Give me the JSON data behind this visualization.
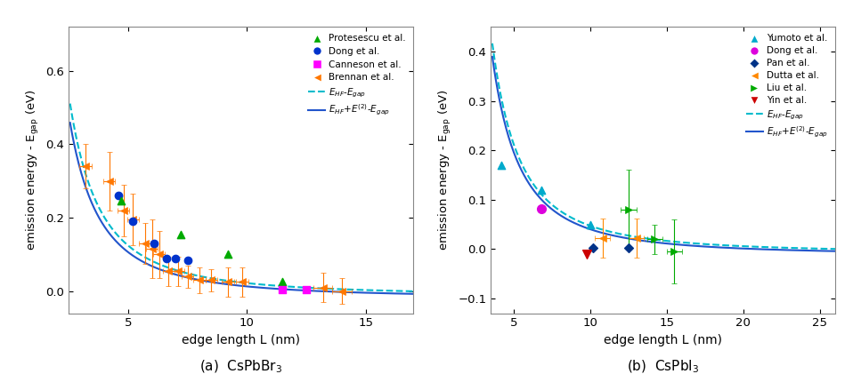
{
  "panel_a": {
    "xlim": [
      2.5,
      17
    ],
    "ylim": [
      -0.06,
      0.72
    ],
    "xticks": [
      5,
      10,
      15
    ],
    "yticks": [
      0.0,
      0.2,
      0.4,
      0.6
    ],
    "xlabel": "edge length L (nm)",
    "ylabel": "emission energy - E$_\\mathrm{gap}$ (eV)",
    "caption": "(a)  CsPbBr$_3$",
    "datasets": {
      "Protesescu": {
        "x": [
          4.7,
          7.2,
          9.2,
          11.5
        ],
        "y": [
          0.245,
          0.155,
          0.1,
          0.025
        ],
        "color": "#00aa00",
        "marker": "^",
        "ms": 6,
        "label": "Protesescu et al."
      },
      "Dong": {
        "x": [
          4.6,
          5.2,
          6.1,
          6.6,
          7.0,
          7.5
        ],
        "y": [
          0.26,
          0.19,
          0.13,
          0.09,
          0.09,
          0.085
        ],
        "color": "#0033cc",
        "marker": "o",
        "ms": 6,
        "label": "Dong et al."
      },
      "Canneson": {
        "x": [
          11.5,
          12.5
        ],
        "y": [
          0.005,
          0.005
        ],
        "color": "#ff00ff",
        "marker": "s",
        "ms": 6,
        "label": "Canneson et al."
      },
      "Brennan": {
        "x": [
          3.2,
          4.2,
          4.8,
          5.2,
          5.7,
          6.0,
          6.3,
          6.7,
          7.1,
          7.5,
          8.0,
          8.5,
          9.2,
          9.8,
          13.2,
          14.0
        ],
        "y": [
          0.34,
          0.3,
          0.22,
          0.195,
          0.13,
          0.115,
          0.1,
          0.055,
          0.055,
          0.04,
          0.03,
          0.03,
          0.025,
          0.025,
          0.01,
          0.0
        ],
        "xerr": [
          0.25,
          0.25,
          0.25,
          0.25,
          0.25,
          0.25,
          0.25,
          0.25,
          0.25,
          0.25,
          0.25,
          0.25,
          0.25,
          0.25,
          0.4,
          0.4
        ],
        "yerr": [
          0.06,
          0.08,
          0.07,
          0.07,
          0.055,
          0.08,
          0.065,
          0.04,
          0.04,
          0.03,
          0.035,
          0.03,
          0.04,
          0.04,
          0.04,
          0.035
        ],
        "color": "#ff7700",
        "marker": "<",
        "ms": 6,
        "label": "Brennan et al."
      }
    },
    "curve_HF": {
      "color": "#00bbcc",
      "linestyle": "--",
      "lw": 1.5
    },
    "curve_HF2": {
      "color": "#2255cc",
      "linestyle": "-",
      "lw": 1.5
    },
    "curve_HF_A": 3.4,
    "curve_HF_c": -0.012,
    "curve_HF2_A": 3.1,
    "curve_HF2_c": -0.018,
    "curve_xstart": 2.55,
    "curve_xend": 17.0
  },
  "panel_b": {
    "xlim": [
      3.5,
      26
    ],
    "ylim": [
      -0.13,
      0.45
    ],
    "xticks": [
      5,
      10,
      15,
      20,
      25
    ],
    "yticks": [
      -0.1,
      0.0,
      0.1,
      0.2,
      0.3,
      0.4
    ],
    "xlabel": "edge length L (nm)",
    "ylabel": "emission energy - E$_\\mathrm{gap}$ (eV)",
    "caption": "(b)  CsPbI$_3$",
    "datasets": {
      "Yumoto": {
        "x": [
          4.2,
          6.8,
          10.0
        ],
        "y": [
          0.17,
          0.12,
          0.05
        ],
        "color": "#00aacc",
        "marker": "^",
        "ms": 6,
        "label": "Yumoto et al."
      },
      "Dong": {
        "x": [
          6.8
        ],
        "y": [
          0.082
        ],
        "color": "#dd00dd",
        "marker": "o",
        "ms": 7,
        "label": "Dong et al."
      },
      "Pan": {
        "x": [
          10.2,
          12.5
        ],
        "y": [
          0.003,
          0.003
        ],
        "color": "#003388",
        "marker": "D",
        "ms": 5,
        "label": "Pan et al."
      },
      "Dutta": {
        "x": [
          10.8,
          13.0
        ],
        "y": [
          0.022,
          0.022
        ],
        "xerr": [
          0.5,
          0.5
        ],
        "yerr": [
          0.04,
          0.04
        ],
        "color": "#ff8800",
        "marker": "<",
        "ms": 6,
        "label": "Dutta et al."
      },
      "Liu": {
        "x": [
          12.5,
          14.2,
          15.5
        ],
        "y": [
          0.08,
          0.02,
          -0.005
        ],
        "xerr": [
          0.5,
          0.5,
          0.5
        ],
        "yerr": [
          0.08,
          0.03,
          0.065
        ],
        "color": "#00aa00",
        "marker": ">",
        "ms": 6,
        "label": "Liu et al."
      },
      "Yin": {
        "x": [
          9.8
        ],
        "y": [
          -0.01
        ],
        "color": "#cc0000",
        "marker": "v",
        "ms": 7,
        "label": "Yin et al."
      }
    },
    "curve_HF": {
      "color": "#00bbcc",
      "linestyle": "--",
      "lw": 1.5
    },
    "curve_HF2": {
      "color": "#2255cc",
      "linestyle": "-",
      "lw": 1.5
    },
    "curve_HF_A": 5.5,
    "curve_HF_c": -0.008,
    "curve_HF2_A": 5.2,
    "curve_HF2_c": -0.012,
    "curve_xstart": 3.6,
    "curve_xend": 26.0
  },
  "figure_background": "#ffffff",
  "legend_a_order": [
    "Protesescu et al.",
    "Dong et al.",
    "Canneson et al.",
    "Brennan et al.",
    "EHF_Egap",
    "EHF2_Egap"
  ],
  "legend_b_order": [
    "Yumoto et al.",
    "Dong et al.",
    "Pan et al.",
    "Dutta et al.",
    "Liu et al.",
    "Yin et al.",
    "EHF_Egap",
    "EHF2_Egap"
  ]
}
